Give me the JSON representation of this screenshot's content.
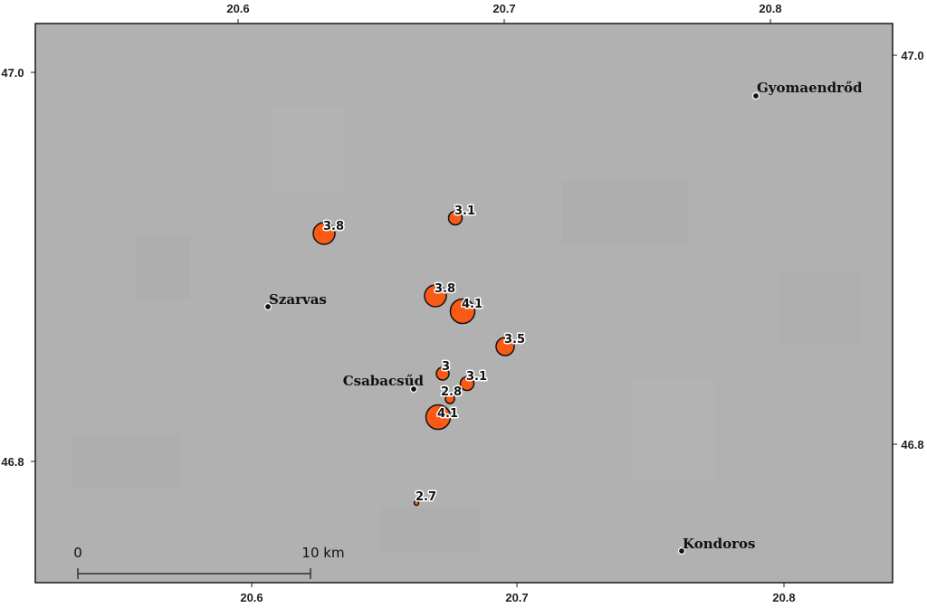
{
  "map": {
    "frame_color": "#1a1a1a",
    "background_color": "#b1b1b1",
    "top_axis_ticks": [
      "20.6",
      "20.7",
      "20.8"
    ],
    "bottom_axis_ticks": [
      "20.6",
      "20.7",
      "20.8"
    ],
    "left_axis_ticks": [
      "47.0",
      "46.8"
    ],
    "right_axis_ticks": [
      "47.0",
      "46.8"
    ]
  },
  "towns": [
    {
      "name": "Gyomaendrőd"
    },
    {
      "name": "Szarvas"
    },
    {
      "name": "Csabacsűd"
    },
    {
      "name": "Kondoros"
    }
  ],
  "earthquakes": {
    "marker_color": "#fa5a16",
    "marker_stroke": "#111111",
    "events": [
      {
        "magnitude": "3.8"
      },
      {
        "magnitude": "3.1"
      },
      {
        "magnitude": "3.8"
      },
      {
        "magnitude": "4.1"
      },
      {
        "magnitude": "3.5"
      },
      {
        "magnitude": "3"
      },
      {
        "magnitude": "3.1"
      },
      {
        "magnitude": "2.8"
      },
      {
        "magnitude": "4.1"
      },
      {
        "magnitude": "2.7"
      }
    ]
  },
  "scale_bar": {
    "start_label": "0",
    "end_label": "10 km"
  }
}
